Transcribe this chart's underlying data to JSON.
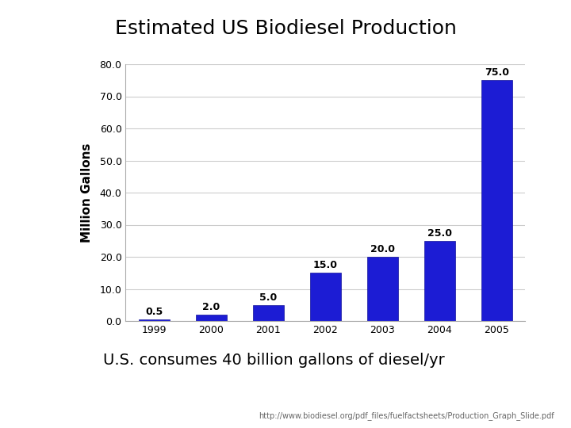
{
  "title": "Estimated US Biodiesel Production",
  "years": [
    "1999",
    "2000",
    "2001",
    "2002",
    "2003",
    "2004",
    "2005"
  ],
  "values": [
    0.5,
    2.0,
    5.0,
    15.0,
    20.0,
    25.0,
    75.0
  ],
  "bar_color": "#1c1cd4",
  "ylabel": "Million Gallons",
  "ylim": [
    0,
    80
  ],
  "yticks": [
    0.0,
    10.0,
    20.0,
    30.0,
    40.0,
    50.0,
    60.0,
    70.0,
    80.0
  ],
  "subtitle": "U.S. consumes 40 billion gallons of diesel/yr",
  "url": "http://www.biodiesel.org/pdf_files/fuelfactsheets/Production_Graph_Slide.pdf",
  "bg_color": "#ffffff",
  "title_fontsize": 18,
  "subtitle_fontsize": 14,
  "axis_label_fontsize": 11,
  "tick_fontsize": 9,
  "bar_label_fontsize": 9,
  "url_fontsize": 7
}
